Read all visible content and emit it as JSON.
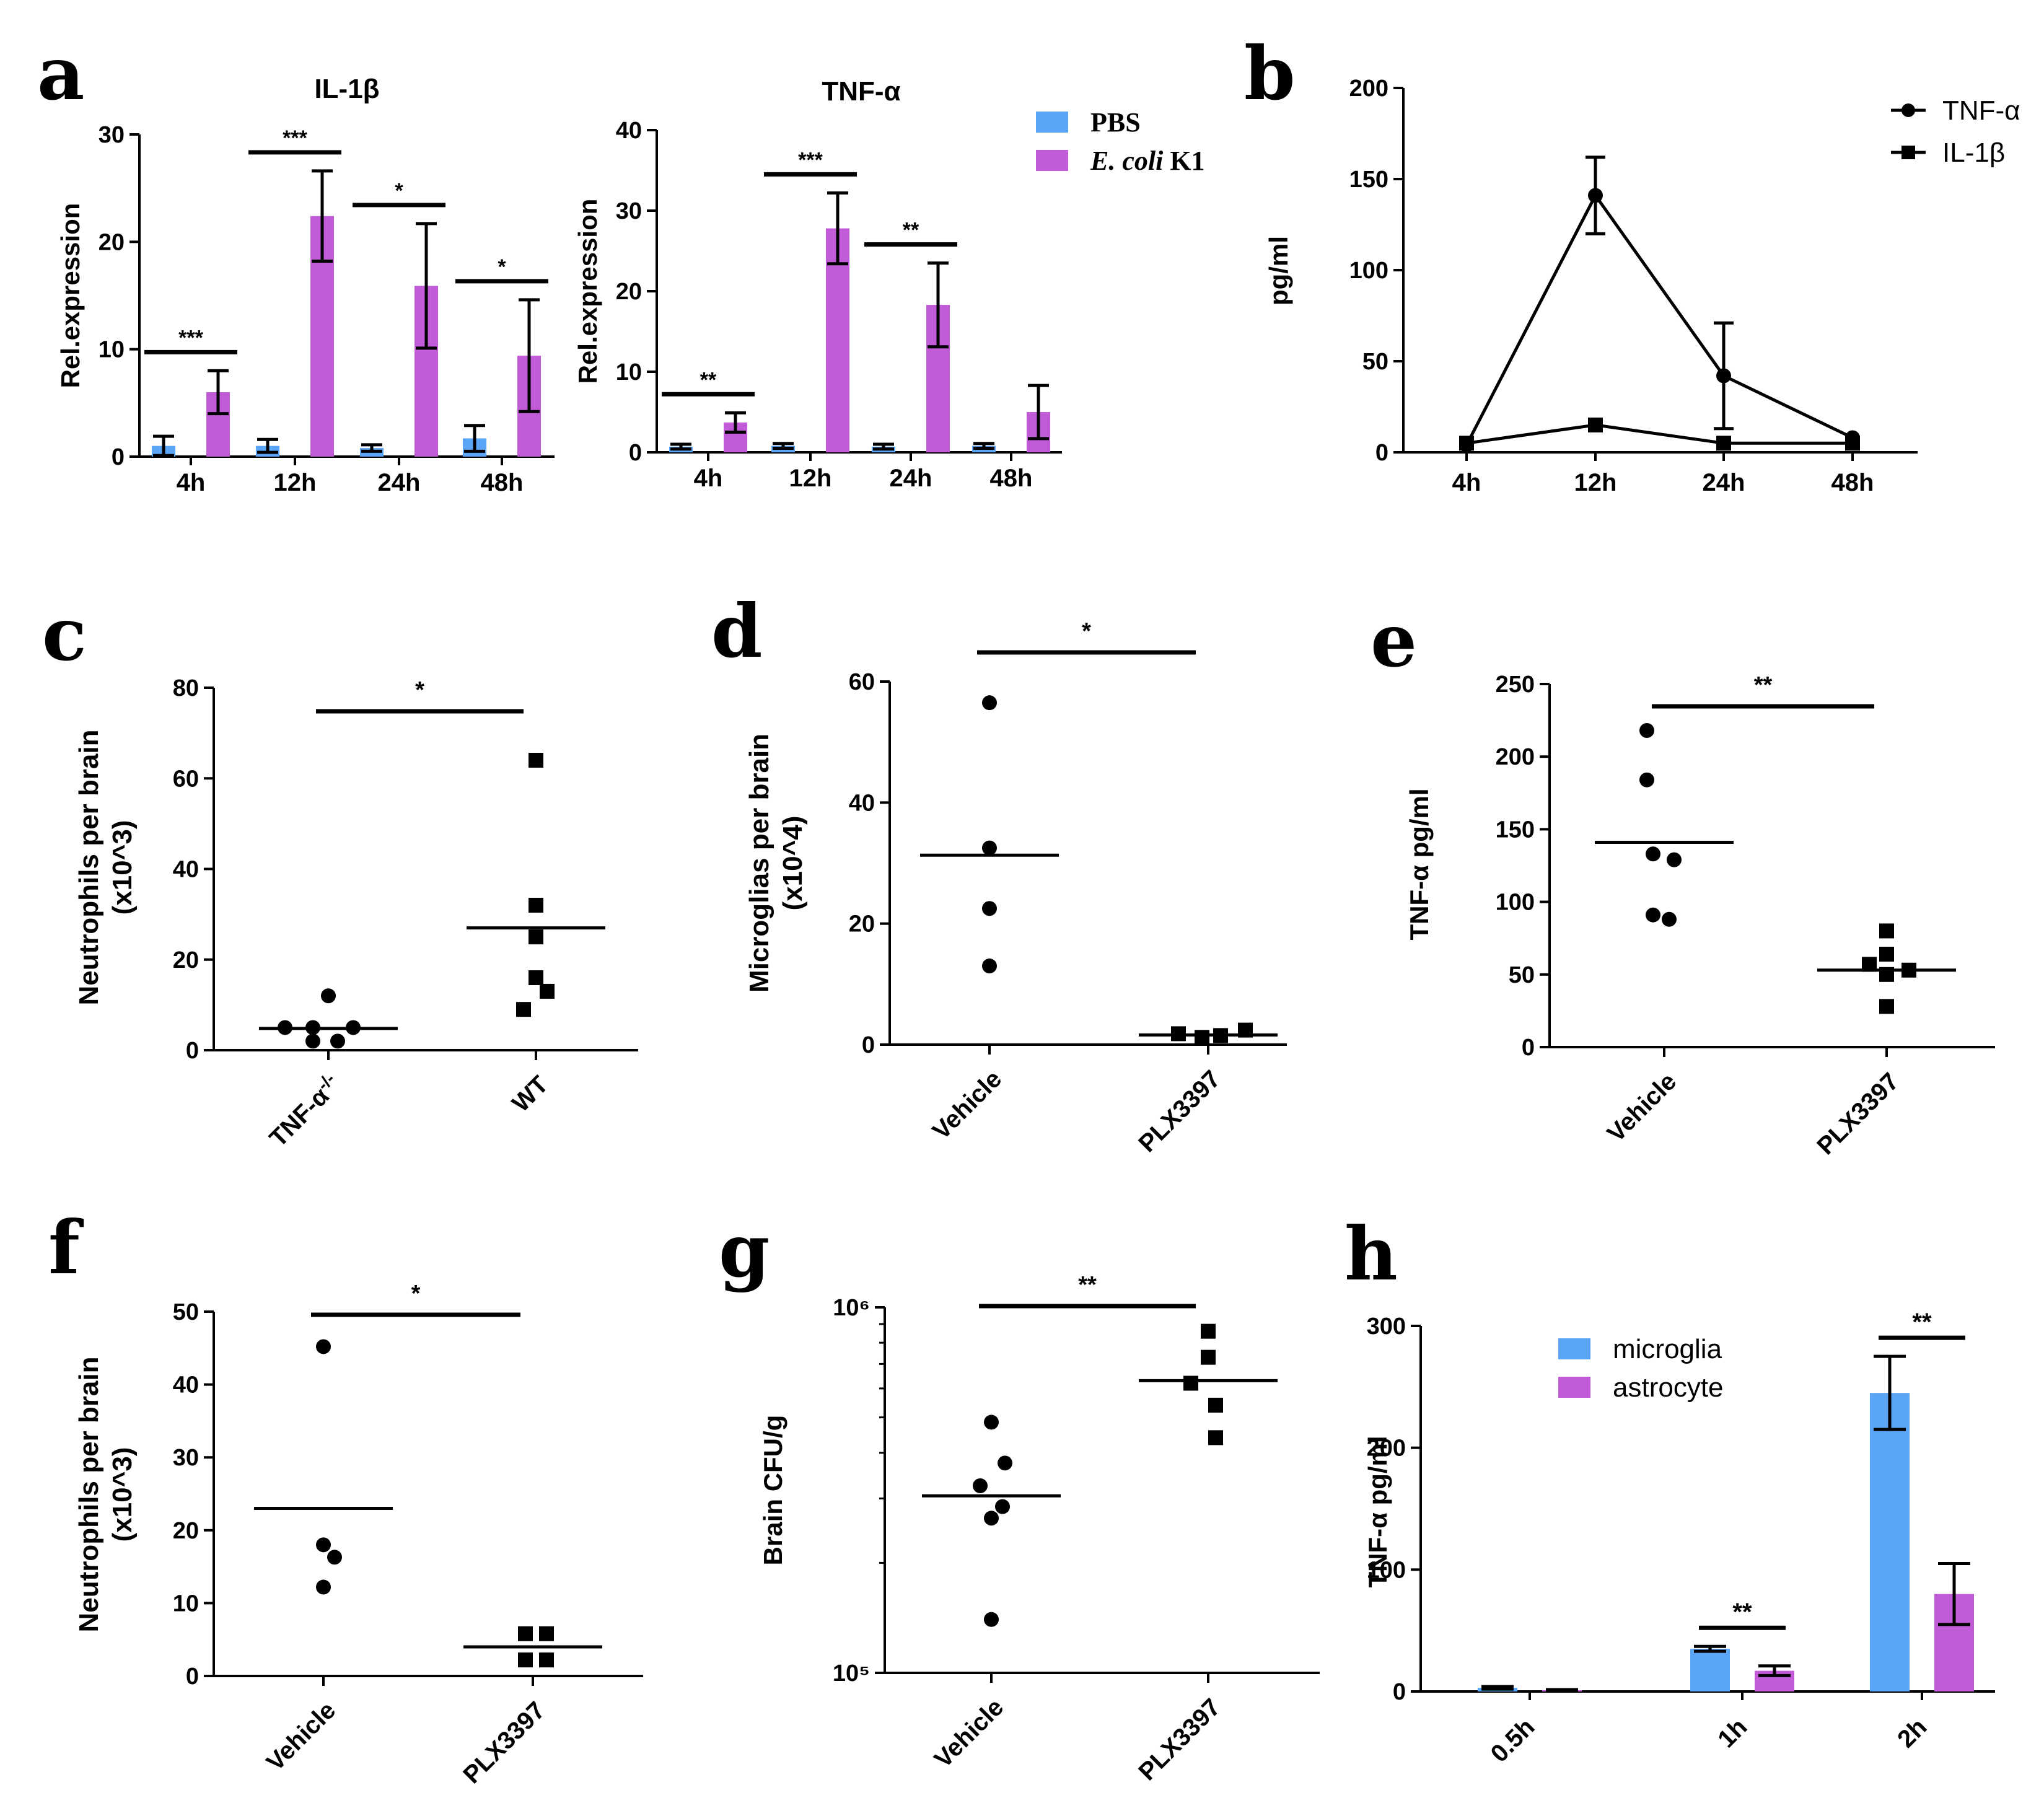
{
  "colors": {
    "pbs": "#5aa5f5",
    "ecoli": "#c15bd8",
    "microglia": "#5aa5f5",
    "astrocyte": "#c15bd8",
    "ink": "#000000"
  },
  "chart_data": [
    {
      "id": "a1",
      "panel": "a",
      "type": "bar",
      "title": "IL-1β",
      "ylabel": "Rel.expression",
      "categories": [
        "4h",
        "12h",
        "24h",
        "48h"
      ],
      "ylim": [
        0,
        30
      ],
      "yticks": [
        "0",
        "10",
        "20",
        "30"
      ],
      "series": [
        {
          "name": "PBS",
          "color": "#5aa5f5",
          "values": [
            1.0,
            1.0,
            0.8,
            1.7
          ],
          "errors": [
            0.9,
            0.6,
            0.3,
            1.2
          ]
        },
        {
          "name": "E. coli K1",
          "color": "#c15bd8",
          "values": [
            6.0,
            22.4,
            15.9,
            9.4
          ],
          "errors": [
            2.0,
            4.2,
            5.8,
            5.2
          ]
        }
      ],
      "significance": [
        "***",
        "***",
        "*",
        "*"
      ]
    },
    {
      "id": "a2",
      "panel": "",
      "type": "bar",
      "title": "TNF-α",
      "ylabel": "Rel.expression",
      "categories": [
        "4h",
        "12h",
        "24h",
        "48h"
      ],
      "ylim": [
        0,
        40
      ],
      "yticks": [
        "0",
        "10",
        "20",
        "30",
        "40"
      ],
      "series": [
        {
          "name": "PBS",
          "color": "#5aa5f5",
          "values": [
            0.7,
            0.8,
            0.7,
            0.8
          ],
          "errors": [
            0.3,
            0.3,
            0.3,
            0.3
          ]
        },
        {
          "name": "E. coli K1",
          "color": "#c15bd8",
          "values": [
            3.7,
            27.8,
            18.3,
            5.0
          ],
          "errors": [
            1.2,
            4.4,
            5.2,
            3.3
          ]
        }
      ],
      "significance": [
        "**",
        "***",
        "**",
        ""
      ],
      "legend": {
        "items": [
          "PBS",
          "E. coli K1"
        ],
        "placement": "top-right"
      }
    },
    {
      "id": "b",
      "panel": "b",
      "type": "line",
      "ylabel": "pg/ml",
      "x": [
        "4h",
        "12h",
        "24h",
        "48h"
      ],
      "ylim": [
        0,
        200
      ],
      "yticks": [
        "0",
        "50",
        "100",
        "150",
        "200"
      ],
      "series": [
        {
          "name": "TNF-α",
          "marker": "circle",
          "values": [
            4,
            141,
            42,
            8
          ],
          "errors": [
            0,
            21,
            29,
            0
          ]
        },
        {
          "name": "IL-1β",
          "marker": "square",
          "values": [
            5,
            15,
            5,
            5
          ],
          "errors": [
            0,
            0,
            0,
            0
          ]
        }
      ],
      "legend": {
        "items": [
          "TNF-α",
          "IL-1β"
        ],
        "placement": "top-right"
      }
    },
    {
      "id": "c",
      "panel": "c",
      "type": "scatter",
      "ylabel": [
        "Neutrophils per brain",
        "(x10^3)"
      ],
      "categories": [
        "TNF-α-/-",
        "WT"
      ],
      "ylim": [
        0,
        80
      ],
      "yticks": [
        "0",
        "20",
        "40",
        "60",
        "80"
      ],
      "groups": [
        {
          "name": "TNF-α-/-",
          "marker": "circle",
          "points": [
            5,
            5,
            12,
            5,
            2,
            2
          ],
          "mean": 4.8
        },
        {
          "name": "WT",
          "marker": "square",
          "points": [
            64,
            32,
            25,
            16,
            13,
            9
          ],
          "mean": 27
        }
      ],
      "significance": "*"
    },
    {
      "id": "d",
      "panel": "d",
      "type": "scatter",
      "ylabel": [
        "Microglias per brain",
        "(x10^4)"
      ],
      "categories": [
        "Vehicle",
        "PLX3397"
      ],
      "ylim": [
        0,
        60
      ],
      "yticks": [
        "0",
        "20",
        "40",
        "60"
      ],
      "groups": [
        {
          "name": "Vehicle",
          "marker": "circle",
          "points": [
            56.5,
            32.5,
            22.5,
            13
          ],
          "mean": 31.3
        },
        {
          "name": "PLX3397",
          "marker": "square",
          "points": [
            1.8,
            1.2,
            1.5,
            2.4
          ],
          "mean": 1.6
        }
      ],
      "significance": "*"
    },
    {
      "id": "e",
      "panel": "e",
      "type": "scatter",
      "ylabel": "TNF-α pg/ml",
      "categories": [
        "Vehicle",
        "PLX3397"
      ],
      "ylim": [
        0,
        250
      ],
      "yticks": [
        "0",
        "50",
        "100",
        "150",
        "200",
        "250"
      ],
      "groups": [
        {
          "name": "Vehicle",
          "marker": "circle",
          "points": [
            218,
            184,
            133,
            129,
            91,
            88
          ],
          "mean": 141
        },
        {
          "name": "PLX3397",
          "marker": "square",
          "points": [
            80,
            64,
            57,
            53,
            50,
            28
          ],
          "mean": 53
        }
      ],
      "significance": "**"
    },
    {
      "id": "f",
      "panel": "f",
      "type": "scatter",
      "ylabel": [
        "Neutrophils per brain",
        "(x10^3)"
      ],
      "categories": [
        "Vehicle",
        "PLX3397"
      ],
      "ylim": [
        0,
        50
      ],
      "yticks": [
        "0",
        "10",
        "20",
        "30",
        "40",
        "50"
      ],
      "groups": [
        {
          "name": "Vehicle",
          "marker": "circle",
          "points": [
            45.2,
            18,
            16.3,
            12.2
          ],
          "mean": 23
        },
        {
          "name": "PLX3397",
          "marker": "square",
          "points": [
            5.8,
            5.8,
            2.2,
            2.2
          ],
          "mean": 4
        }
      ],
      "significance": "*"
    },
    {
      "id": "g",
      "panel": "g",
      "type": "scatter",
      "yscale": "log",
      "ylabel": "Brain CFU/g",
      "categories": [
        "Vehicle",
        "PLX3397"
      ],
      "ylim": [
        100000,
        1000000
      ],
      "yticks": [
        "10⁵",
        "10⁶"
      ],
      "groups": [
        {
          "name": "Vehicle",
          "marker": "circle",
          "points": [
            485000,
            375000,
            325000,
            285000,
            265000,
            140000
          ],
          "mean": 305000
        },
        {
          "name": "PLX3397",
          "marker": "square",
          "points": [
            860000,
            730000,
            620000,
            540000,
            440000
          ],
          "mean": 630000
        }
      ],
      "significance": "**"
    },
    {
      "id": "h",
      "panel": "h",
      "type": "bar",
      "ylabel": "TNF-α pg/ml",
      "categories": [
        "0.5h",
        "1h",
        "2h"
      ],
      "ylim": [
        0,
        300
      ],
      "yticks": [
        "0",
        "100",
        "200",
        "300"
      ],
      "series": [
        {
          "name": "microglia",
          "color": "#5aa5f5",
          "values": [
            3,
            35,
            245
          ],
          "errors": [
            1,
            2,
            30
          ]
        },
        {
          "name": "astrocyte",
          "color": "#c15bd8",
          "values": [
            1,
            17,
            80
          ],
          "errors": [
            0.5,
            4,
            25
          ]
        }
      ],
      "significance": [
        "",
        "**",
        "**"
      ],
      "legend": {
        "items": [
          "microglia",
          "astrocyte"
        ],
        "placement": "top-left"
      }
    }
  ]
}
